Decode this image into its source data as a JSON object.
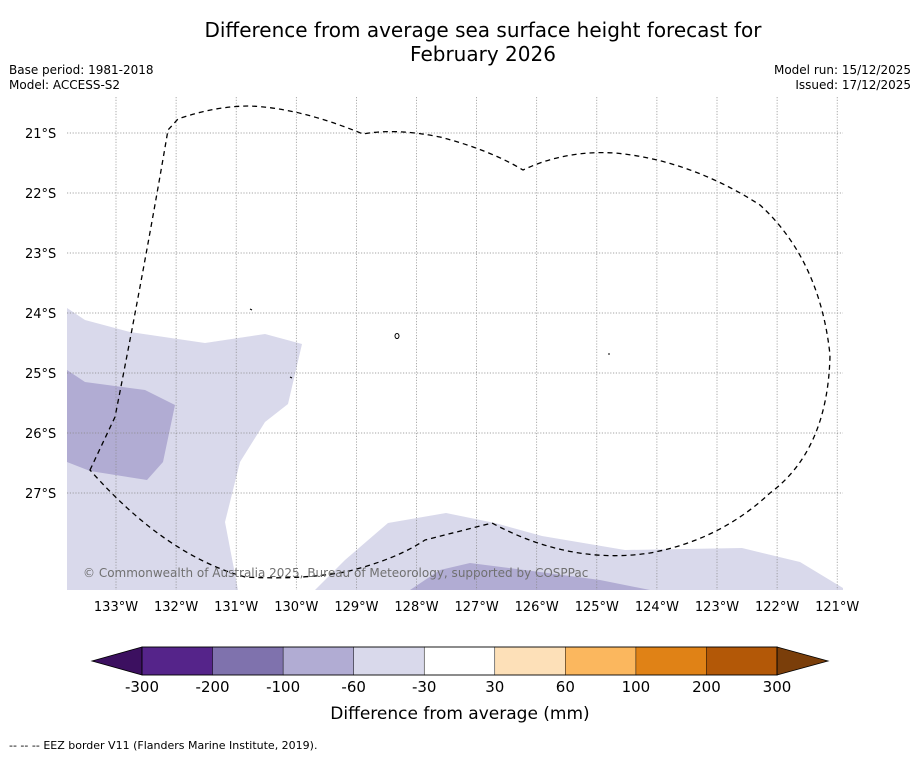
{
  "title": {
    "line1": "Difference from average sea surface height forecast for",
    "line2": "February 2026"
  },
  "meta": {
    "base_period": "Base period: 1981-2018",
    "model": "Model: ACCESS-S2",
    "model_run": "Model run: 15/12/2025",
    "issued": "Issued: 17/12/2025"
  },
  "map": {
    "lat_labels": [
      "21°S",
      "22°S",
      "23°S",
      "24°S",
      "25°S",
      "26°S",
      "27°S"
    ],
    "lon_labels": [
      "133°W",
      "132°W",
      "131°W",
      "130°W",
      "129°W",
      "128°W",
      "127°W",
      "126°W",
      "125°W",
      "124°W",
      "123°W",
      "122°W",
      "121°W"
    ],
    "copyright": "© Commonwealth of Australia 2025, Bureau of Meteorology, supported by COSPPac",
    "eez_border_color": "#000000",
    "regions": [
      {
        "name": "light-anomaly-band-west",
        "level": "-60 to -30",
        "color": "#d9d9eb"
      },
      {
        "name": "medium-anomaly-patch-west",
        "level": "-100 to -60",
        "color": "#b1acd3"
      },
      {
        "name": "light-anomaly-band-south",
        "level": "-60 to -30",
        "color": "#d9d9eb"
      },
      {
        "name": "medium-anomaly-patch-south",
        "level": "-100 to -60",
        "color": "#b1acd3"
      }
    ]
  },
  "colorbar": {
    "label": "Difference from average (mm)",
    "ticks": [
      "-300",
      "-200",
      "-100",
      "-60",
      "-30",
      "30",
      "60",
      "100",
      "200",
      "300"
    ],
    "under_color": "#3c1060",
    "over_color": "#7a3e0a",
    "colors": [
      "#55248a",
      "#7f72ad",
      "#b1acd3",
      "#d9d9eb",
      "#ffffff",
      "#fde0b8",
      "#fbb75e",
      "#e08216",
      "#b35807"
    ]
  },
  "footer": {
    "legend_symbol": "-- -- --",
    "legend_text": "EEZ border V11 (Flanders Marine Institute, 2019)."
  }
}
